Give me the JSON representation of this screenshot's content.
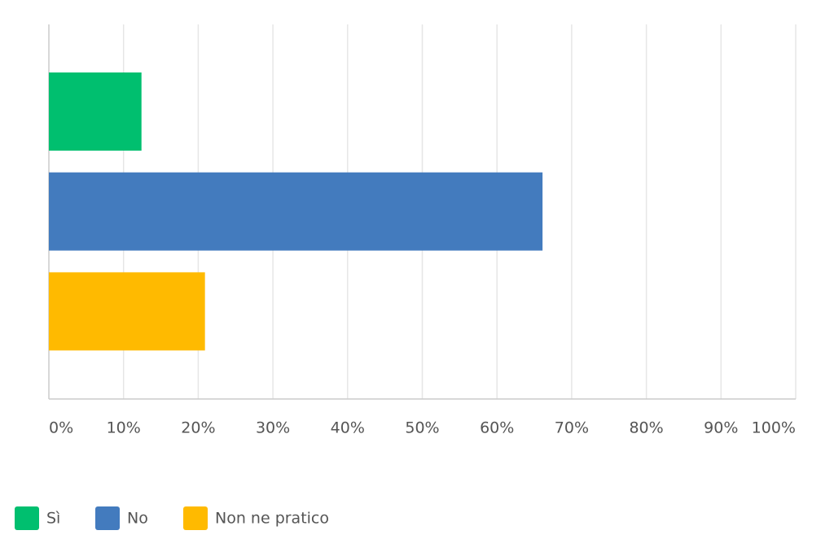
{
  "chart_data": {
    "type": "bar",
    "orientation": "horizontal",
    "categories": [
      "Sì",
      "No",
      "Non ne pratico"
    ],
    "values": [
      12.4,
      66.1,
      20.9
    ],
    "colors": [
      "#00bf6f",
      "#437bbe",
      "#ffba00"
    ],
    "xlim": [
      0,
      100
    ],
    "xticks": [
      {
        "value": 0,
        "label": "0%"
      },
      {
        "value": 10,
        "label": "10%"
      },
      {
        "value": 20,
        "label": "20%"
      },
      {
        "value": 30,
        "label": "30%"
      },
      {
        "value": 40,
        "label": "40%"
      },
      {
        "value": 50,
        "label": "50%"
      },
      {
        "value": 60,
        "label": "60%"
      },
      {
        "value": 70,
        "label": "70%"
      },
      {
        "value": 80,
        "label": "80%"
      },
      {
        "value": 90,
        "label": "90%"
      },
      {
        "value": 100,
        "label": "100%"
      }
    ],
    "grid": true,
    "legend": "bottom-left"
  }
}
